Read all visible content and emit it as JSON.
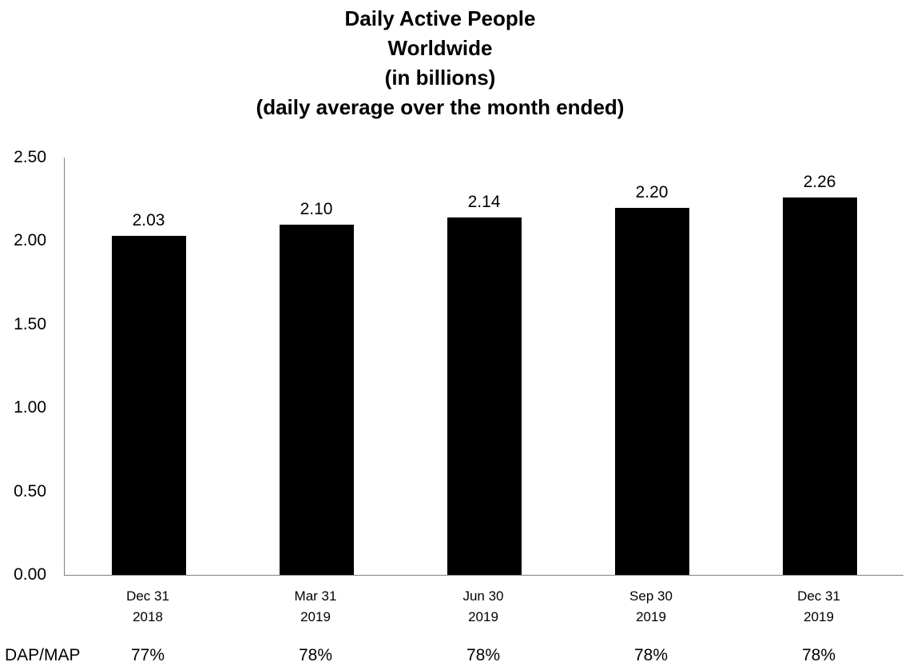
{
  "chart_data": {
    "type": "bar",
    "title_lines": [
      "Daily Active People",
      "Worldwide",
      "(in billions)",
      "(daily average over the month ended)"
    ],
    "categories": [
      [
        "Dec 31",
        "2018"
      ],
      [
        "Mar 31",
        "2019"
      ],
      [
        "Jun 30",
        "2019"
      ],
      [
        "Sep 30",
        "2019"
      ],
      [
        "Dec 31",
        "2019"
      ]
    ],
    "values": [
      2.03,
      2.1,
      2.14,
      2.2,
      2.26
    ],
    "value_labels": [
      "2.03",
      "2.10",
      "2.14",
      "2.20",
      "2.26"
    ],
    "ylim": [
      0,
      2.5
    ],
    "ytick_labels": [
      "0.00",
      "0.50",
      "1.00",
      "1.50",
      "2.00",
      "2.50"
    ],
    "grid": false,
    "legend": "none",
    "bar_color": "#000000",
    "axis_color": "#808080",
    "dap_map_label": "DAP/MAP",
    "dap_map_values": [
      "77%",
      "78%",
      "78%",
      "78%",
      "78%"
    ]
  }
}
